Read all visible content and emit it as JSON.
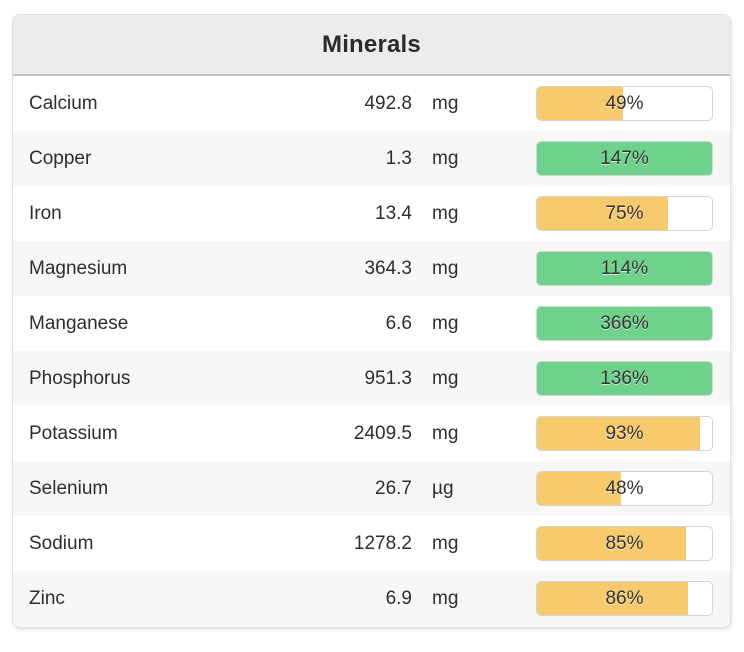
{
  "card": {
    "title": "Minerals",
    "rows": [
      {
        "name": "Calcium",
        "amount": "492.8",
        "unit": "mg",
        "percent_label": "49%",
        "percent_value": 49
      },
      {
        "name": "Copper",
        "amount": "1.3",
        "unit": "mg",
        "percent_label": "147%",
        "percent_value": 147
      },
      {
        "name": "Iron",
        "amount": "13.4",
        "unit": "mg",
        "percent_label": "75%",
        "percent_value": 75
      },
      {
        "name": "Magnesium",
        "amount": "364.3",
        "unit": "mg",
        "percent_label": "114%",
        "percent_value": 114
      },
      {
        "name": "Manganese",
        "amount": "6.6",
        "unit": "mg",
        "percent_label": "366%",
        "percent_value": 366
      },
      {
        "name": "Phosphorus",
        "amount": "951.3",
        "unit": "mg",
        "percent_label": "136%",
        "percent_value": 136
      },
      {
        "name": "Potassium",
        "amount": "2409.5",
        "unit": "mg",
        "percent_label": "93%",
        "percent_value": 93
      },
      {
        "name": "Selenium",
        "amount": "26.7",
        "unit": "µg",
        "percent_label": "48%",
        "percent_value": 48
      },
      {
        "name": "Sodium",
        "amount": "1278.2",
        "unit": "mg",
        "percent_label": "85%",
        "percent_value": 85
      },
      {
        "name": "Zinc",
        "amount": "6.9",
        "unit": "mg",
        "percent_label": "86%",
        "percent_value": 86
      }
    ],
    "colors": {
      "under_target_fill": "#f6ca6d",
      "met_target_fill": "#6fd28c"
    }
  }
}
